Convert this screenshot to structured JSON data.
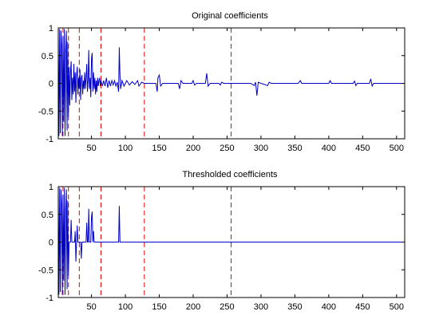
{
  "chart_data": [
    {
      "type": "line",
      "title": "Original coefficients",
      "xlim": [
        1,
        512
      ],
      "ylim": [
        -1,
        1
      ],
      "xticks": [
        50,
        100,
        150,
        200,
        250,
        300,
        350,
        400,
        450,
        500
      ],
      "yticks": [
        -1,
        -0.5,
        0,
        0.5,
        1
      ],
      "line_color": "#0000c8",
      "marker_color": "#e00000",
      "vertical_markers": [
        8,
        16,
        32,
        64,
        128,
        256
      ],
      "series": [
        {
          "points": [
            [
              1,
              0.9
            ],
            [
              2,
              -0.95
            ],
            [
              3,
              0.98
            ],
            [
              4,
              -0.9
            ],
            [
              5,
              0.95
            ],
            [
              6,
              0.7
            ],
            [
              7,
              -0.95
            ],
            [
              8,
              0.85
            ],
            [
              9,
              -0.7
            ],
            [
              10,
              0.98
            ],
            [
              11,
              -0.95
            ],
            [
              12,
              0.6
            ],
            [
              13,
              0.95
            ],
            [
              14,
              -0.85
            ],
            [
              15,
              0.75
            ],
            [
              16,
              -0.6
            ],
            [
              17,
              0.3
            ],
            [
              18,
              -0.4
            ],
            [
              19,
              0.2
            ],
            [
              20,
              0.4
            ],
            [
              21,
              -0.3
            ],
            [
              22,
              0.1
            ],
            [
              23,
              -0.2
            ],
            [
              24,
              0.35
            ],
            [
              25,
              -0.15
            ],
            [
              26,
              0.2
            ],
            [
              27,
              -0.35
            ],
            [
              28,
              0.15
            ],
            [
              29,
              0.3
            ],
            [
              30,
              -0.2
            ],
            [
              31,
              0.1
            ],
            [
              32,
              -0.1
            ],
            [
              33,
              0.25
            ],
            [
              34,
              -0.3
            ],
            [
              35,
              0.1
            ],
            [
              36,
              0.15
            ],
            [
              37,
              -0.2
            ],
            [
              38,
              0.05
            ],
            [
              39,
              -0.1
            ],
            [
              40,
              0.2
            ],
            [
              41,
              -0.1
            ],
            [
              42,
              0.1
            ],
            [
              43,
              0.35
            ],
            [
              44,
              -0.15
            ],
            [
              45,
              0.05
            ],
            [
              46,
              0.6
            ],
            [
              47,
              -0.1
            ],
            [
              48,
              0.1
            ],
            [
              49,
              -0.25
            ],
            [
              50,
              0.45
            ],
            [
              51,
              0.55
            ],
            [
              52,
              -0.15
            ],
            [
              53,
              0.2
            ],
            [
              54,
              -0.1
            ],
            [
              55,
              0.1
            ],
            [
              56,
              -0.2
            ],
            [
              57,
              0.05
            ],
            [
              58,
              -0.15
            ],
            [
              59,
              0.1
            ],
            [
              60,
              -0.05
            ],
            [
              61,
              0.05
            ],
            [
              62,
              0.1
            ],
            [
              63,
              -0.05
            ],
            [
              64,
              0.05
            ],
            [
              66,
              -0.05
            ],
            [
              68,
              0.05
            ],
            [
              70,
              -0.05
            ],
            [
              72,
              0.1
            ],
            [
              74,
              -0.08
            ],
            [
              76,
              0.05
            ],
            [
              78,
              -0.05
            ],
            [
              80,
              0.05
            ],
            [
              82,
              -0.03
            ],
            [
              84,
              0.05
            ],
            [
              86,
              -0.05
            ],
            [
              88,
              0.02
            ],
            [
              90,
              -0.15
            ],
            [
              91,
              0.65
            ],
            [
              92,
              0.15
            ],
            [
              93,
              -0.1
            ],
            [
              95,
              0.05
            ],
            [
              98,
              -0.05
            ],
            [
              102,
              0.05
            ],
            [
              106,
              -0.03
            ],
            [
              110,
              0.03
            ],
            [
              114,
              -0.02
            ],
            [
              118,
              0.05
            ],
            [
              120,
              -0.05
            ],
            [
              124,
              0.02
            ],
            [
              128,
              0.0
            ],
            [
              135,
              0.0
            ],
            [
              145,
              0.0
            ],
            [
              147,
              -0.15
            ],
            [
              148,
              0.1
            ],
            [
              150,
              0.15
            ],
            [
              152,
              -0.05
            ],
            [
              155,
              0.0
            ],
            [
              170,
              0.0
            ],
            [
              178,
              0.0
            ],
            [
              180,
              -0.1
            ],
            [
              182,
              0.05
            ],
            [
              185,
              0.0
            ],
            [
              198,
              0.0
            ],
            [
              200,
              0.05
            ],
            [
              202,
              -0.03
            ],
            [
              205,
              0.0
            ],
            [
              218,
              0.0
            ],
            [
              220,
              0.18
            ],
            [
              222,
              -0.05
            ],
            [
              225,
              0.0
            ],
            [
              238,
              0.0
            ],
            [
              240,
              -0.03
            ],
            [
              242,
              0.02
            ],
            [
              245,
              0.0
            ],
            [
              260,
              0.0
            ],
            [
              285,
              0.0
            ],
            [
              290,
              -0.04
            ],
            [
              292,
              0.02
            ],
            [
              294,
              -0.22
            ],
            [
              296,
              0.02
            ],
            [
              300,
              0.0
            ],
            [
              310,
              -0.04
            ],
            [
              312,
              0.02
            ],
            [
              315,
              0.0
            ],
            [
              355,
              0.0
            ],
            [
              358,
              0.05
            ],
            [
              360,
              0.0
            ],
            [
              400,
              0.0
            ],
            [
              402,
              0.05
            ],
            [
              404,
              0.0
            ],
            [
              436,
              0.0
            ],
            [
              438,
              0.04
            ],
            [
              440,
              -0.04
            ],
            [
              442,
              0.0
            ],
            [
              460,
              0.0
            ],
            [
              462,
              0.08
            ],
            [
              464,
              -0.05
            ],
            [
              466,
              0.0
            ],
            [
              512,
              0.0
            ]
          ]
        }
      ]
    },
    {
      "type": "line",
      "title": "Thresholded coefficients",
      "xlim": [
        1,
        512
      ],
      "ylim": [
        -1,
        1
      ],
      "xticks": [
        50,
        100,
        150,
        200,
        250,
        300,
        350,
        400,
        450,
        500
      ],
      "yticks": [
        -1,
        -0.5,
        0,
        0.5,
        1
      ],
      "line_color": "#0000c8",
      "marker_color": "#e00000",
      "vertical_markers": [
        8,
        16,
        32,
        64,
        128,
        256
      ],
      "series": [
        {
          "points": [
            [
              1,
              0.9
            ],
            [
              2,
              -0.95
            ],
            [
              3,
              0.98
            ],
            [
              4,
              -0.9
            ],
            [
              5,
              0.95
            ],
            [
              6,
              0.7
            ],
            [
              7,
              -0.95
            ],
            [
              8,
              0.85
            ],
            [
              9,
              -0.7
            ],
            [
              10,
              0.98
            ],
            [
              11,
              -0.95
            ],
            [
              12,
              0.6
            ],
            [
              13,
              0.95
            ],
            [
              14,
              -0.85
            ],
            [
              15,
              0.75
            ],
            [
              16,
              -0.6
            ],
            [
              17,
              0.0
            ],
            [
              19,
              0.0
            ],
            [
              20,
              0.4
            ],
            [
              21,
              0.0
            ],
            [
              25,
              0.0
            ],
            [
              26,
              0.2
            ],
            [
              27,
              -0.35
            ],
            [
              28,
              0.0
            ],
            [
              29,
              0.3
            ],
            [
              30,
              0.0
            ],
            [
              34,
              0.0
            ],
            [
              35,
              -0.3
            ],
            [
              36,
              0.0
            ],
            [
              42,
              0.0
            ],
            [
              43,
              0.35
            ],
            [
              44,
              0.0
            ],
            [
              45,
              0.0
            ],
            [
              46,
              0.6
            ],
            [
              47,
              0.0
            ],
            [
              49,
              0.0
            ],
            [
              50,
              0.45
            ],
            [
              51,
              0.55
            ],
            [
              52,
              0.0
            ],
            [
              53,
              0.2
            ],
            [
              54,
              0.0
            ],
            [
              90,
              0.0
            ],
            [
              91,
              0.65
            ],
            [
              92,
              0.0
            ],
            [
              512,
              0.0
            ]
          ]
        }
      ]
    }
  ]
}
